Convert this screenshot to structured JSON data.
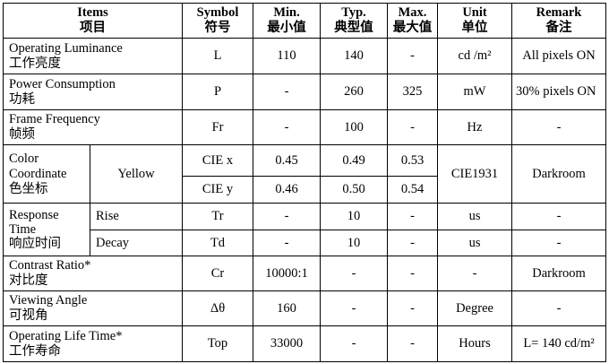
{
  "header": [
    {
      "en": "Items",
      "zh": "项目"
    },
    {
      "en": "Symbol",
      "zh": "符号"
    },
    {
      "en": "Min.",
      "zh": "最小值"
    },
    {
      "en": "Typ.",
      "zh": "典型值"
    },
    {
      "en": "Max.",
      "zh": "最大值"
    },
    {
      "en": "Unit",
      "zh": "单位"
    },
    {
      "en": "Remark",
      "zh": "备注"
    }
  ],
  "rows": [
    {
      "item": "Operating Luminance",
      "item_zh": "工作亮度",
      "symbol": "L",
      "min": "110",
      "typ": "140",
      "max": "-",
      "unit": "cd /m²",
      "remark": "All pixels ON"
    },
    {
      "item": "Power Consumption",
      "item_zh": "功耗",
      "symbol": "P",
      "min": "-",
      "typ": "260",
      "max": "325",
      "unit": "mW",
      "remark": "30% pixels ON"
    },
    {
      "item": "Frame Frequency",
      "item_zh": "帧频",
      "symbol": "Fr",
      "min": "-",
      "typ": "100",
      "max": "-",
      "unit": "Hz",
      "remark": "-"
    },
    {
      "item": "Color Coordinate",
      "item_zh": "色坐标",
      "sub": "Yellow",
      "unit": "CIE1931",
      "remark": "Darkroom",
      "lines": [
        {
          "symbol": "CIE x",
          "min": "0.45",
          "typ": "0.49",
          "max": "0.53"
        },
        {
          "symbol": "CIE y",
          "min": "0.46",
          "typ": "0.50",
          "max": "0.54"
        }
      ]
    },
    {
      "item": "Response Time",
      "item_zh": "响应时间",
      "lines": [
        {
          "sub": "Rise",
          "symbol": "Tr",
          "min": "-",
          "typ": "10",
          "max": "-",
          "unit": "us",
          "remark": "-"
        },
        {
          "sub": "Decay",
          "symbol": "Td",
          "min": "-",
          "typ": "10",
          "max": "-",
          "unit": "us",
          "remark": "-"
        }
      ]
    },
    {
      "item": "Contrast Ratio*",
      "item_zh": "对比度",
      "symbol": "Cr",
      "min": "10000:1",
      "typ": "-",
      "max": "-",
      "unit": "-",
      "remark": "Darkroom"
    },
    {
      "item": "Viewing Angle",
      "item_zh": "可视角",
      "symbol": "Δθ",
      "min": "160",
      "typ": "-",
      "max": "-",
      "unit": "Degree",
      "remark": "-"
    },
    {
      "item": "Operating Life Time*",
      "item_zh": "工作寿命",
      "symbol": "Top",
      "min": "33000",
      "typ": "-",
      "max": "-",
      "unit": "Hours",
      "remark": "L=  140 cd/m²"
    }
  ]
}
